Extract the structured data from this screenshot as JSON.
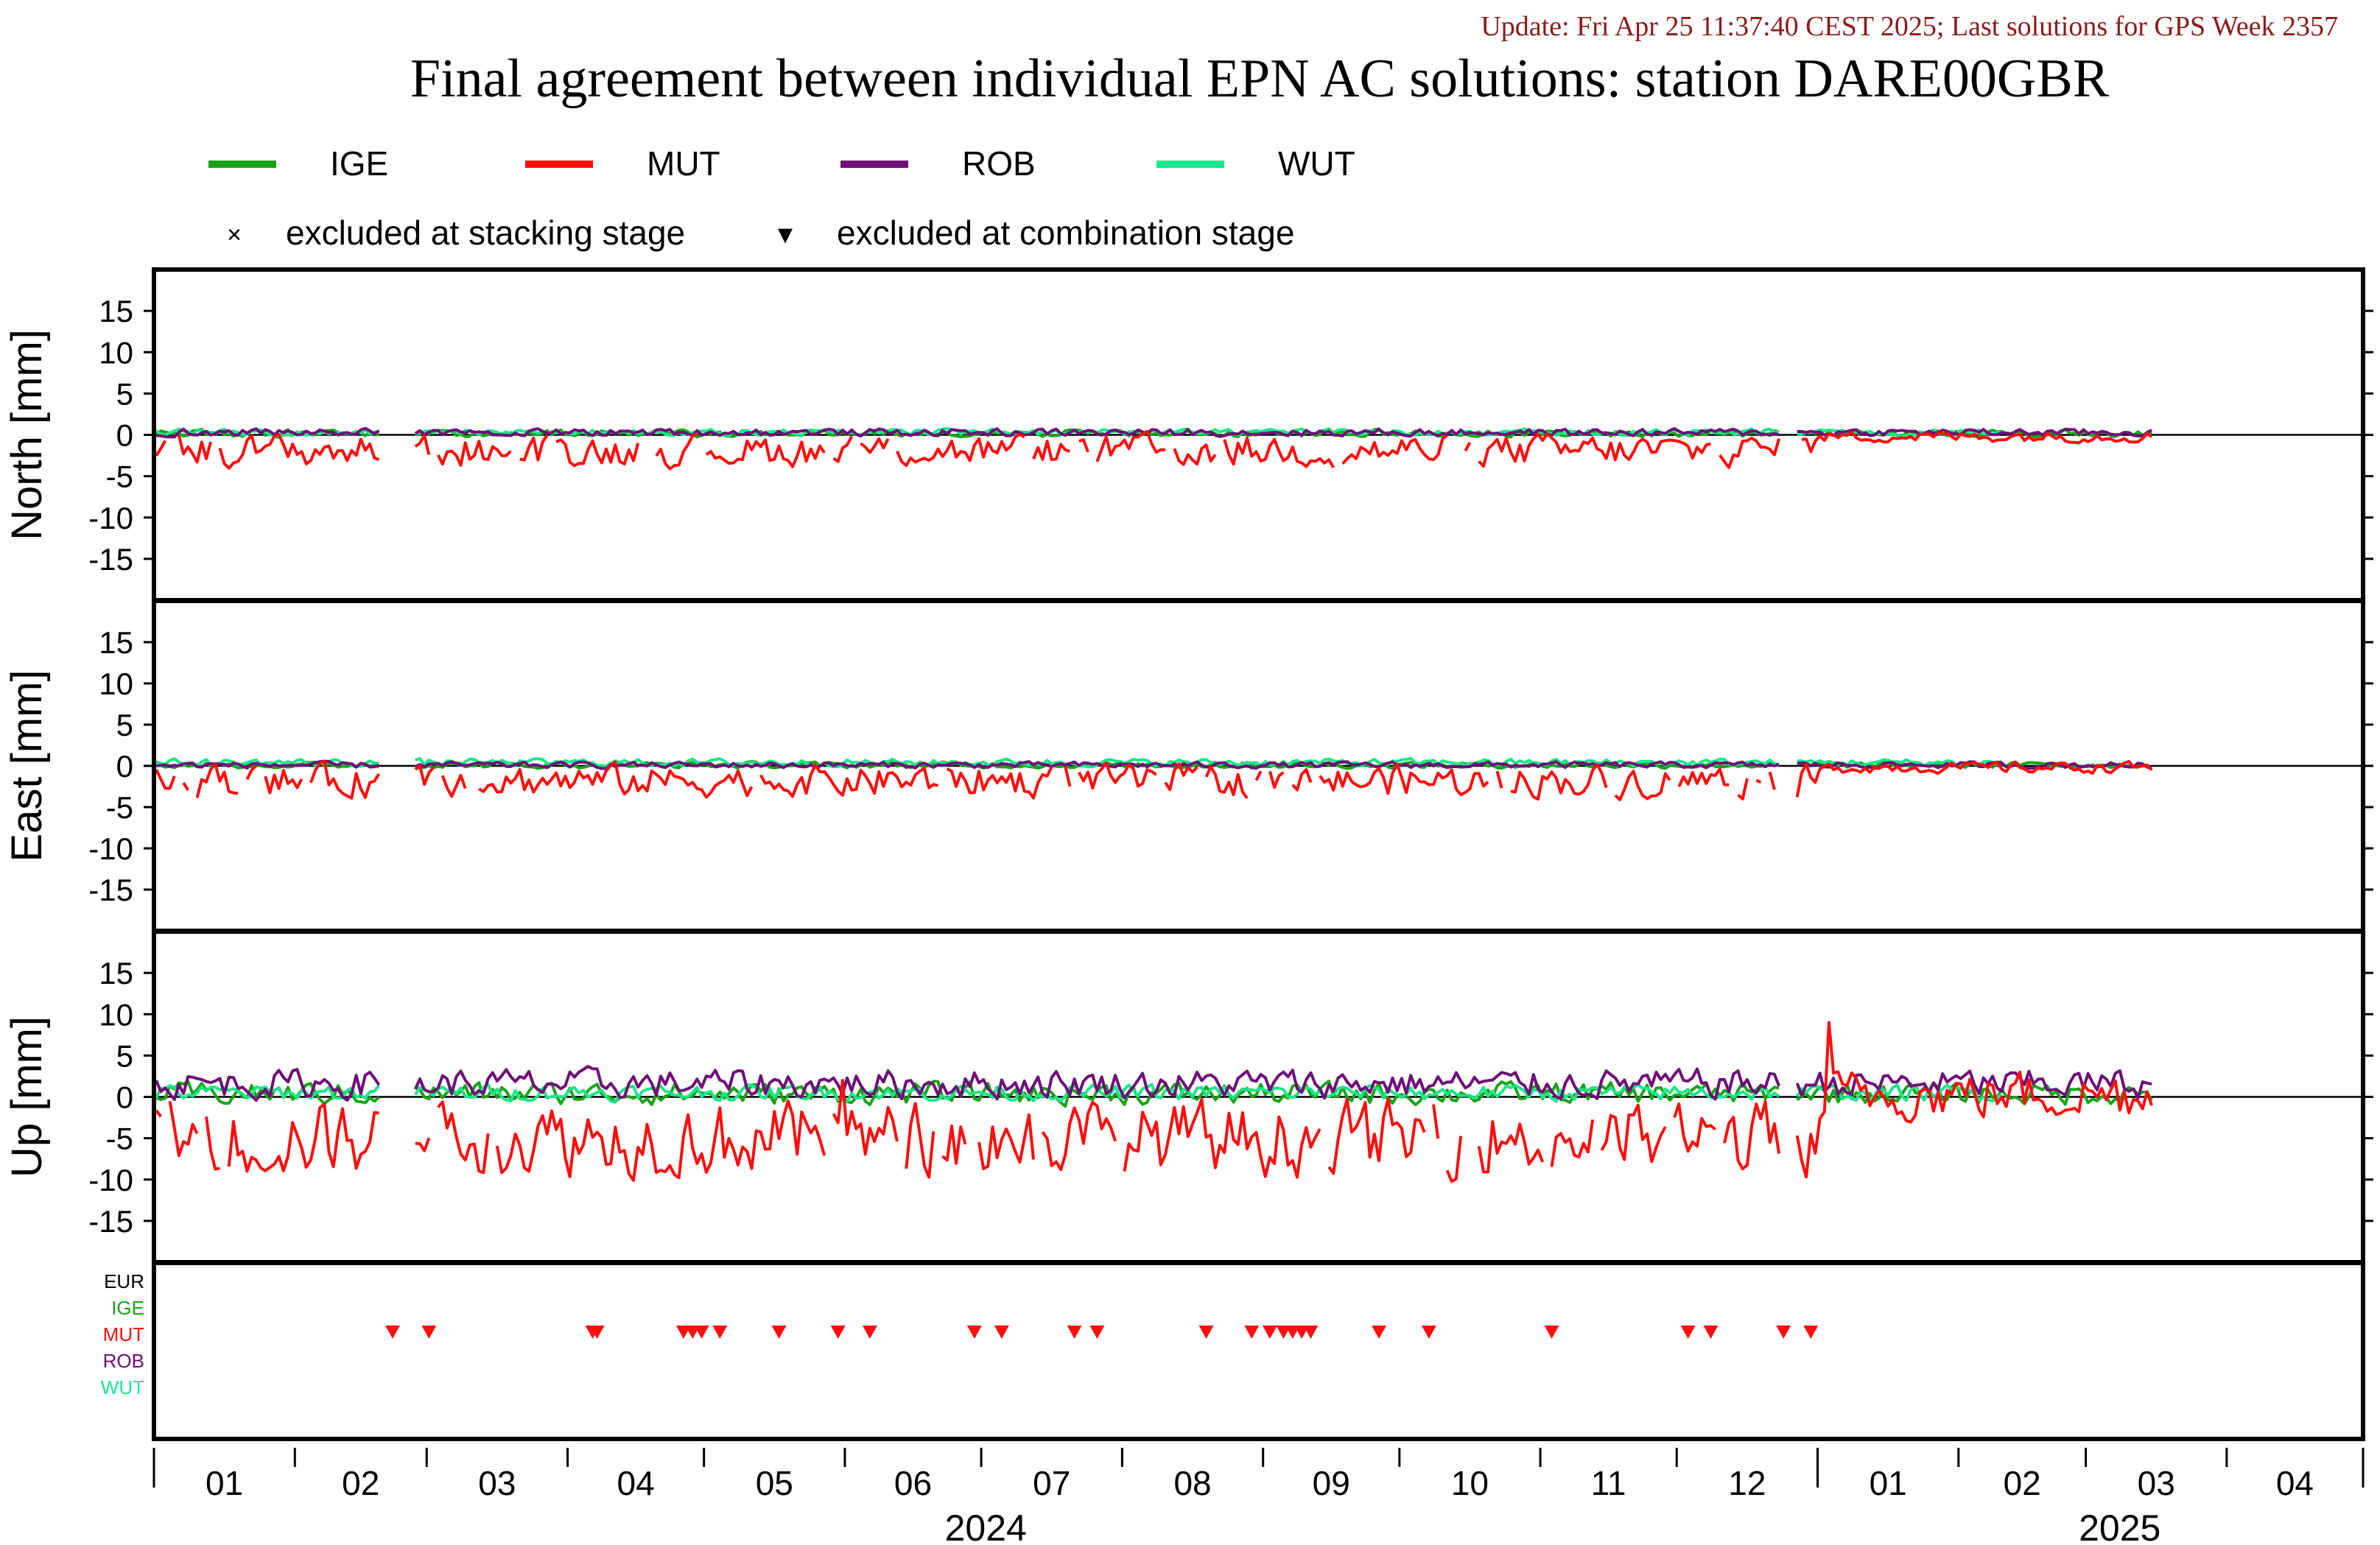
{
  "header": {
    "update_line": "Update: Fri Apr 25 11:37:40 CEST 2025; Last solutions for GPS Week 2357",
    "title": "Final agreement between individual EPN AC solutions: station DARE00GBR"
  },
  "legend": {
    "series": [
      {
        "name": "IGE",
        "color": "#1aa31a"
      },
      {
        "name": "MUT",
        "color": "#ff0d0d"
      },
      {
        "name": "ROB",
        "color": "#6e0f78"
      },
      {
        "name": "WUT",
        "color": "#1ae68a"
      }
    ],
    "markers": [
      {
        "symbol": "×",
        "label": "excluded at stacking stage"
      },
      {
        "symbol": "▼",
        "label": "excluded at combination stage"
      }
    ]
  },
  "exclusion_panel": {
    "rows": [
      {
        "name": "EUR",
        "color": "#000000"
      },
      {
        "name": "IGE",
        "color": "#1aa31a"
      },
      {
        "name": "MUT",
        "color": "#ff0d0d"
      },
      {
        "name": "ROB",
        "color": "#6e0f78"
      },
      {
        "name": "WUT",
        "color": "#1ae68a"
      }
    ]
  },
  "x_axis": {
    "month_labels": [
      "01",
      "02",
      "03",
      "04",
      "05",
      "06",
      "07",
      "08",
      "09",
      "10",
      "11",
      "12",
      "01",
      "02",
      "03",
      "04"
    ],
    "year_labels": [
      "2024",
      "2025"
    ]
  },
  "chart_data": {
    "type": "line",
    "x_range": [
      "2024-01-01",
      "2025-04-30"
    ],
    "panels": [
      {
        "ylabel": "North [mm]",
        "ylim": [
          -20,
          20
        ],
        "yticks": [
          15,
          10,
          5,
          0,
          -5,
          -10,
          -15
        ],
        "series": [
          {
            "name": "IGE",
            "approx_level": 0.2,
            "approx_amplitude": 0.6
          },
          {
            "name": "MUT",
            "approx_level": -1.9,
            "approx_amplitude": 2.6
          },
          {
            "name": "ROB",
            "approx_level": 0.3,
            "approx_amplitude": 0.6
          },
          {
            "name": "WUT",
            "approx_level": 0.3,
            "approx_amplitude": 0.5
          }
        ]
      },
      {
        "ylabel": "East [mm]",
        "ylim": [
          -20,
          20
        ],
        "yticks": [
          15,
          10,
          5,
          0,
          -5,
          -10,
          -15
        ],
        "series": [
          {
            "name": "IGE",
            "approx_level": 0.1,
            "approx_amplitude": 0.5
          },
          {
            "name": "MUT",
            "approx_level": -1.8,
            "approx_amplitude": 2.6
          },
          {
            "name": "ROB",
            "approx_level": 0.1,
            "approx_amplitude": 0.5
          },
          {
            "name": "WUT",
            "approx_level": 0.4,
            "approx_amplitude": 0.6
          }
        ]
      },
      {
        "ylabel": "Up [mm]",
        "ylim": [
          -20,
          20
        ],
        "yticks": [
          15,
          10,
          5,
          0,
          -5,
          -10,
          -15
        ],
        "series": [
          {
            "name": "IGE",
            "approx_level": 0.4,
            "approx_amplitude": 1.8
          },
          {
            "name": "MUT",
            "approx_level": -5.0,
            "approx_amplitude": 6.0
          },
          {
            "name": "ROB",
            "approx_level": 1.6,
            "approx_amplitude": 2.4
          },
          {
            "name": "WUT",
            "approx_level": 0.5,
            "approx_amplitude": 1.3
          }
        ],
        "notable_points": [
          {
            "series": "MUT",
            "date": "2025-01-03",
            "value": 9
          },
          {
            "series": "MUT",
            "date": "2024-05-31",
            "value": 2
          }
        ]
      }
    ],
    "gaps": [
      [
        "2024-02-20",
        "2024-02-26"
      ],
      [
        "2024-12-24",
        "2024-12-26"
      ]
    ],
    "mut_all_after": "2025-01-01",
    "excluded_at_combination_stage": {
      "series": "MUT",
      "dates": [
        "2024-02-22",
        "2024-03-01",
        "2024-04-06",
        "2024-04-07",
        "2024-04-26",
        "2024-04-28",
        "2024-04-30",
        "2024-05-04",
        "2024-05-17",
        "2024-05-30",
        "2024-06-06",
        "2024-06-29",
        "2024-07-05",
        "2024-07-21",
        "2024-07-26",
        "2024-08-19",
        "2024-08-29",
        "2024-09-02",
        "2024-09-05",
        "2024-09-07",
        "2024-09-09",
        "2024-09-11",
        "2024-09-26",
        "2024-10-07",
        "2024-11-03",
        "2024-12-03",
        "2024-12-08",
        "2024-12-24",
        "2024-12-30"
      ]
    }
  }
}
